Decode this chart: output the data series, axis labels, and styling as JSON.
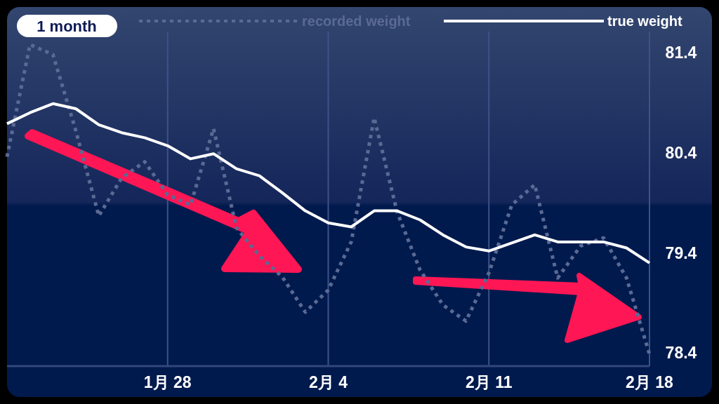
{
  "chart_data": {
    "type": "line",
    "annotations": [
      "1 month"
    ],
    "x": [
      "--01-21",
      "--01-22",
      "--01-23",
      "--01-24",
      "--01-25",
      "--01-26",
      "--01-27",
      "--01-28",
      "--01-29",
      "--01-30",
      "--01-31",
      "--02-01",
      "--02-02",
      "--02-03",
      "--02-04",
      "--02-05",
      "--02-06",
      "--02-07",
      "--02-08",
      "--02-09",
      "--02-10",
      "--02-11",
      "--02-12",
      "--02-13",
      "--02-14",
      "--02-15",
      "--02-16",
      "--02-17",
      "--02-18"
    ],
    "series": [
      {
        "name": "recorded weight",
        "color": "#5a6a94",
        "line_style": "dotted",
        "values": [
          80.36,
          81.48,
          81.38,
          80.62,
          79.77,
          80.15,
          80.31,
          79.98,
          79.88,
          80.64,
          79.65,
          79.37,
          79.16,
          78.81,
          79.03,
          79.51,
          80.75,
          79.81,
          79.23,
          78.88,
          78.72,
          79.2,
          79.88,
          80.08,
          79.15,
          79.47,
          79.55,
          79.15,
          78.39
        ]
      },
      {
        "name": "true weight",
        "color": "#ffffff",
        "line_style": "solid",
        "values": [
          80.69,
          80.8,
          80.89,
          80.84,
          80.68,
          80.6,
          80.55,
          80.47,
          80.34,
          80.39,
          80.24,
          80.17,
          80.0,
          79.82,
          79.7,
          79.66,
          79.82,
          79.82,
          79.73,
          79.58,
          79.46,
          79.42,
          79.5,
          79.58,
          79.51,
          79.51,
          79.51,
          79.45,
          79.3
        ]
      }
    ],
    "xlim": [
      "--01-21",
      "--02-18"
    ],
    "ylim": [
      78.27,
      81.61
    ],
    "xticks": [
      {
        "value": "--01-28",
        "label": "1月 28"
      },
      {
        "value": "--02-04",
        "label": "2月 4"
      },
      {
        "value": "--02-11",
        "label": "2月 11"
      },
      {
        "value": "--02-18",
        "label": "2月 18"
      }
    ],
    "yticks": [
      78.4,
      79.4,
      80.4,
      81.4
    ],
    "grid": "x",
    "legend": "top"
  }
}
